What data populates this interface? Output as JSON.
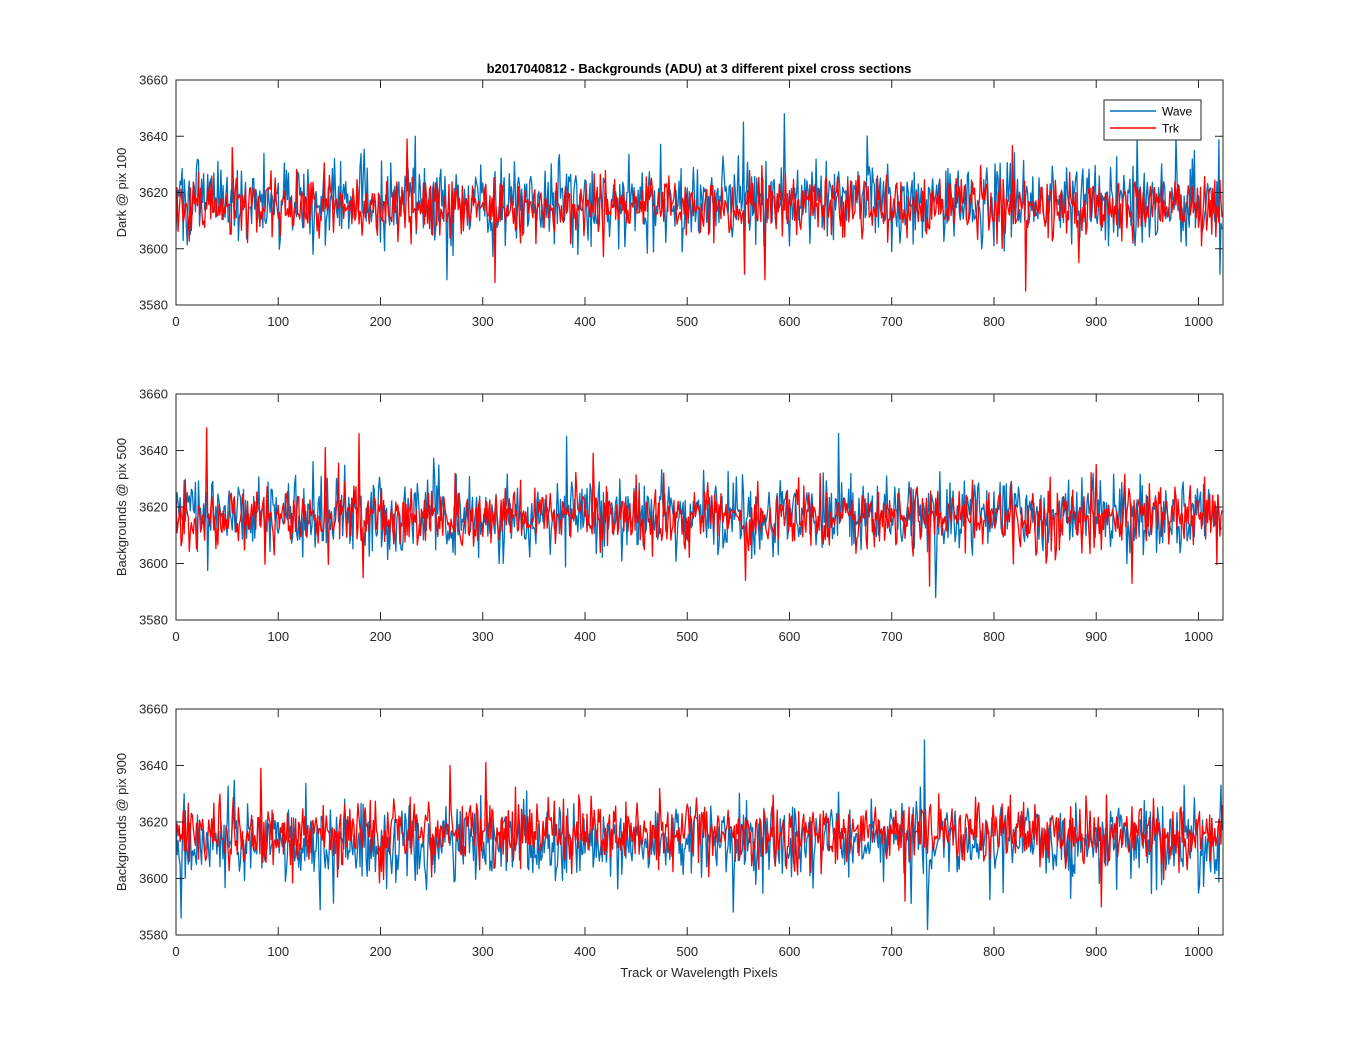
{
  "figure": {
    "title": "b2017040812 - Backgrounds (ADU) at 3 different pixel cross sections",
    "xlabel": "Track or Wavelength Pixels"
  },
  "colors": {
    "wave": "#0072BD",
    "trk": "#FF0000",
    "axis": "#262626",
    "background": "#ffffff"
  },
  "chart_data": [
    {
      "type": "line",
      "ylabel": "Dark @ pix 100",
      "xlim": [
        0,
        1024
      ],
      "ylim": [
        3580,
        3660
      ],
      "xticks": [
        0,
        100,
        200,
        300,
        400,
        500,
        600,
        700,
        800,
        900,
        1000
      ],
      "yticks": [
        3580,
        3600,
        3620,
        3640,
        3660
      ],
      "grid": false,
      "legend": {
        "placement": "top-right",
        "entries": [
          "Wave",
          "Trk"
        ]
      },
      "noise": {
        "n_points": 1024,
        "x_step": 1
      },
      "series": [
        {
          "name": "Wave",
          "color": "#0072BD",
          "mean": 3617,
          "std": 7.2,
          "seed": 101,
          "spikes": [
            [
              4,
              3624
            ],
            [
              44,
              3628
            ],
            [
              134,
              3598
            ],
            [
              234,
              3640
            ],
            [
              265,
              3589
            ],
            [
              393,
              3598
            ],
            [
              433,
              3600
            ],
            [
              555,
              3645
            ],
            [
              595,
              3648
            ],
            [
              700,
              3599
            ],
            [
              788,
              3600
            ],
            [
              940,
              3640
            ],
            [
              978,
              3640
            ],
            [
              1021,
              3591
            ]
          ]
        },
        {
          "name": "Trk",
          "color": "#FF0000",
          "mean": 3615,
          "std": 5.4,
          "seed": 202,
          "spikes": [
            [
              55,
              3636
            ],
            [
              226,
              3639
            ],
            [
              312,
              3588
            ],
            [
              556,
              3591
            ],
            [
              576,
              3589
            ],
            [
              831,
              3585
            ],
            [
              880,
              3620
            ]
          ]
        }
      ]
    },
    {
      "type": "line",
      "ylabel": "Backgrounds @ pix 500",
      "xlim": [
        0,
        1024
      ],
      "ylim": [
        3580,
        3660
      ],
      "xticks": [
        0,
        100,
        200,
        300,
        400,
        500,
        600,
        700,
        800,
        900,
        1000
      ],
      "yticks": [
        3580,
        3600,
        3620,
        3640,
        3660
      ],
      "grid": false,
      "noise": {
        "n_points": 1024,
        "x_step": 1
      },
      "series": [
        {
          "name": "Wave",
          "color": "#0072BD",
          "mean": 3617,
          "std": 6.8,
          "seed": 303,
          "spikes": [
            [
              382,
              3645
            ],
            [
              648,
              3646
            ],
            [
              743,
              3588
            ],
            [
              930,
              3600
            ]
          ]
        },
        {
          "name": "Trk",
          "color": "#FF0000",
          "mean": 3616,
          "std": 5.6,
          "seed": 404,
          "spikes": [
            [
              30,
              3648
            ],
            [
              146,
              3641
            ],
            [
              179,
              3646
            ],
            [
              183,
              3595
            ],
            [
              408,
              3639
            ],
            [
              557,
              3594
            ],
            [
              737,
              3592
            ],
            [
              935,
              3593
            ]
          ]
        }
      ]
    },
    {
      "type": "line",
      "ylabel": "Backgrounds @ pix 900",
      "xlim": [
        0,
        1024
      ],
      "ylim": [
        3580,
        3660
      ],
      "xticks": [
        0,
        100,
        200,
        300,
        400,
        500,
        600,
        700,
        800,
        900,
        1000
      ],
      "yticks": [
        3580,
        3600,
        3620,
        3640,
        3660
      ],
      "grid": false,
      "noise": {
        "n_points": 1024,
        "x_step": 1
      },
      "series": [
        {
          "name": "Wave",
          "color": "#0072BD",
          "mean": 3613,
          "std": 7.0,
          "seed": 505,
          "spikes": [
            [
              5,
              3586
            ],
            [
              141,
              3589
            ],
            [
              732,
              3649
            ],
            [
              1022,
              3633
            ]
          ]
        },
        {
          "name": "Trk",
          "color": "#FF0000",
          "mean": 3616,
          "std": 5.5,
          "seed": 606,
          "spikes": [
            [
              83,
              3639
            ],
            [
              268,
              3640
            ],
            [
              303,
              3641
            ],
            [
              713,
              3592
            ],
            [
              905,
              3590
            ]
          ]
        }
      ]
    }
  ]
}
